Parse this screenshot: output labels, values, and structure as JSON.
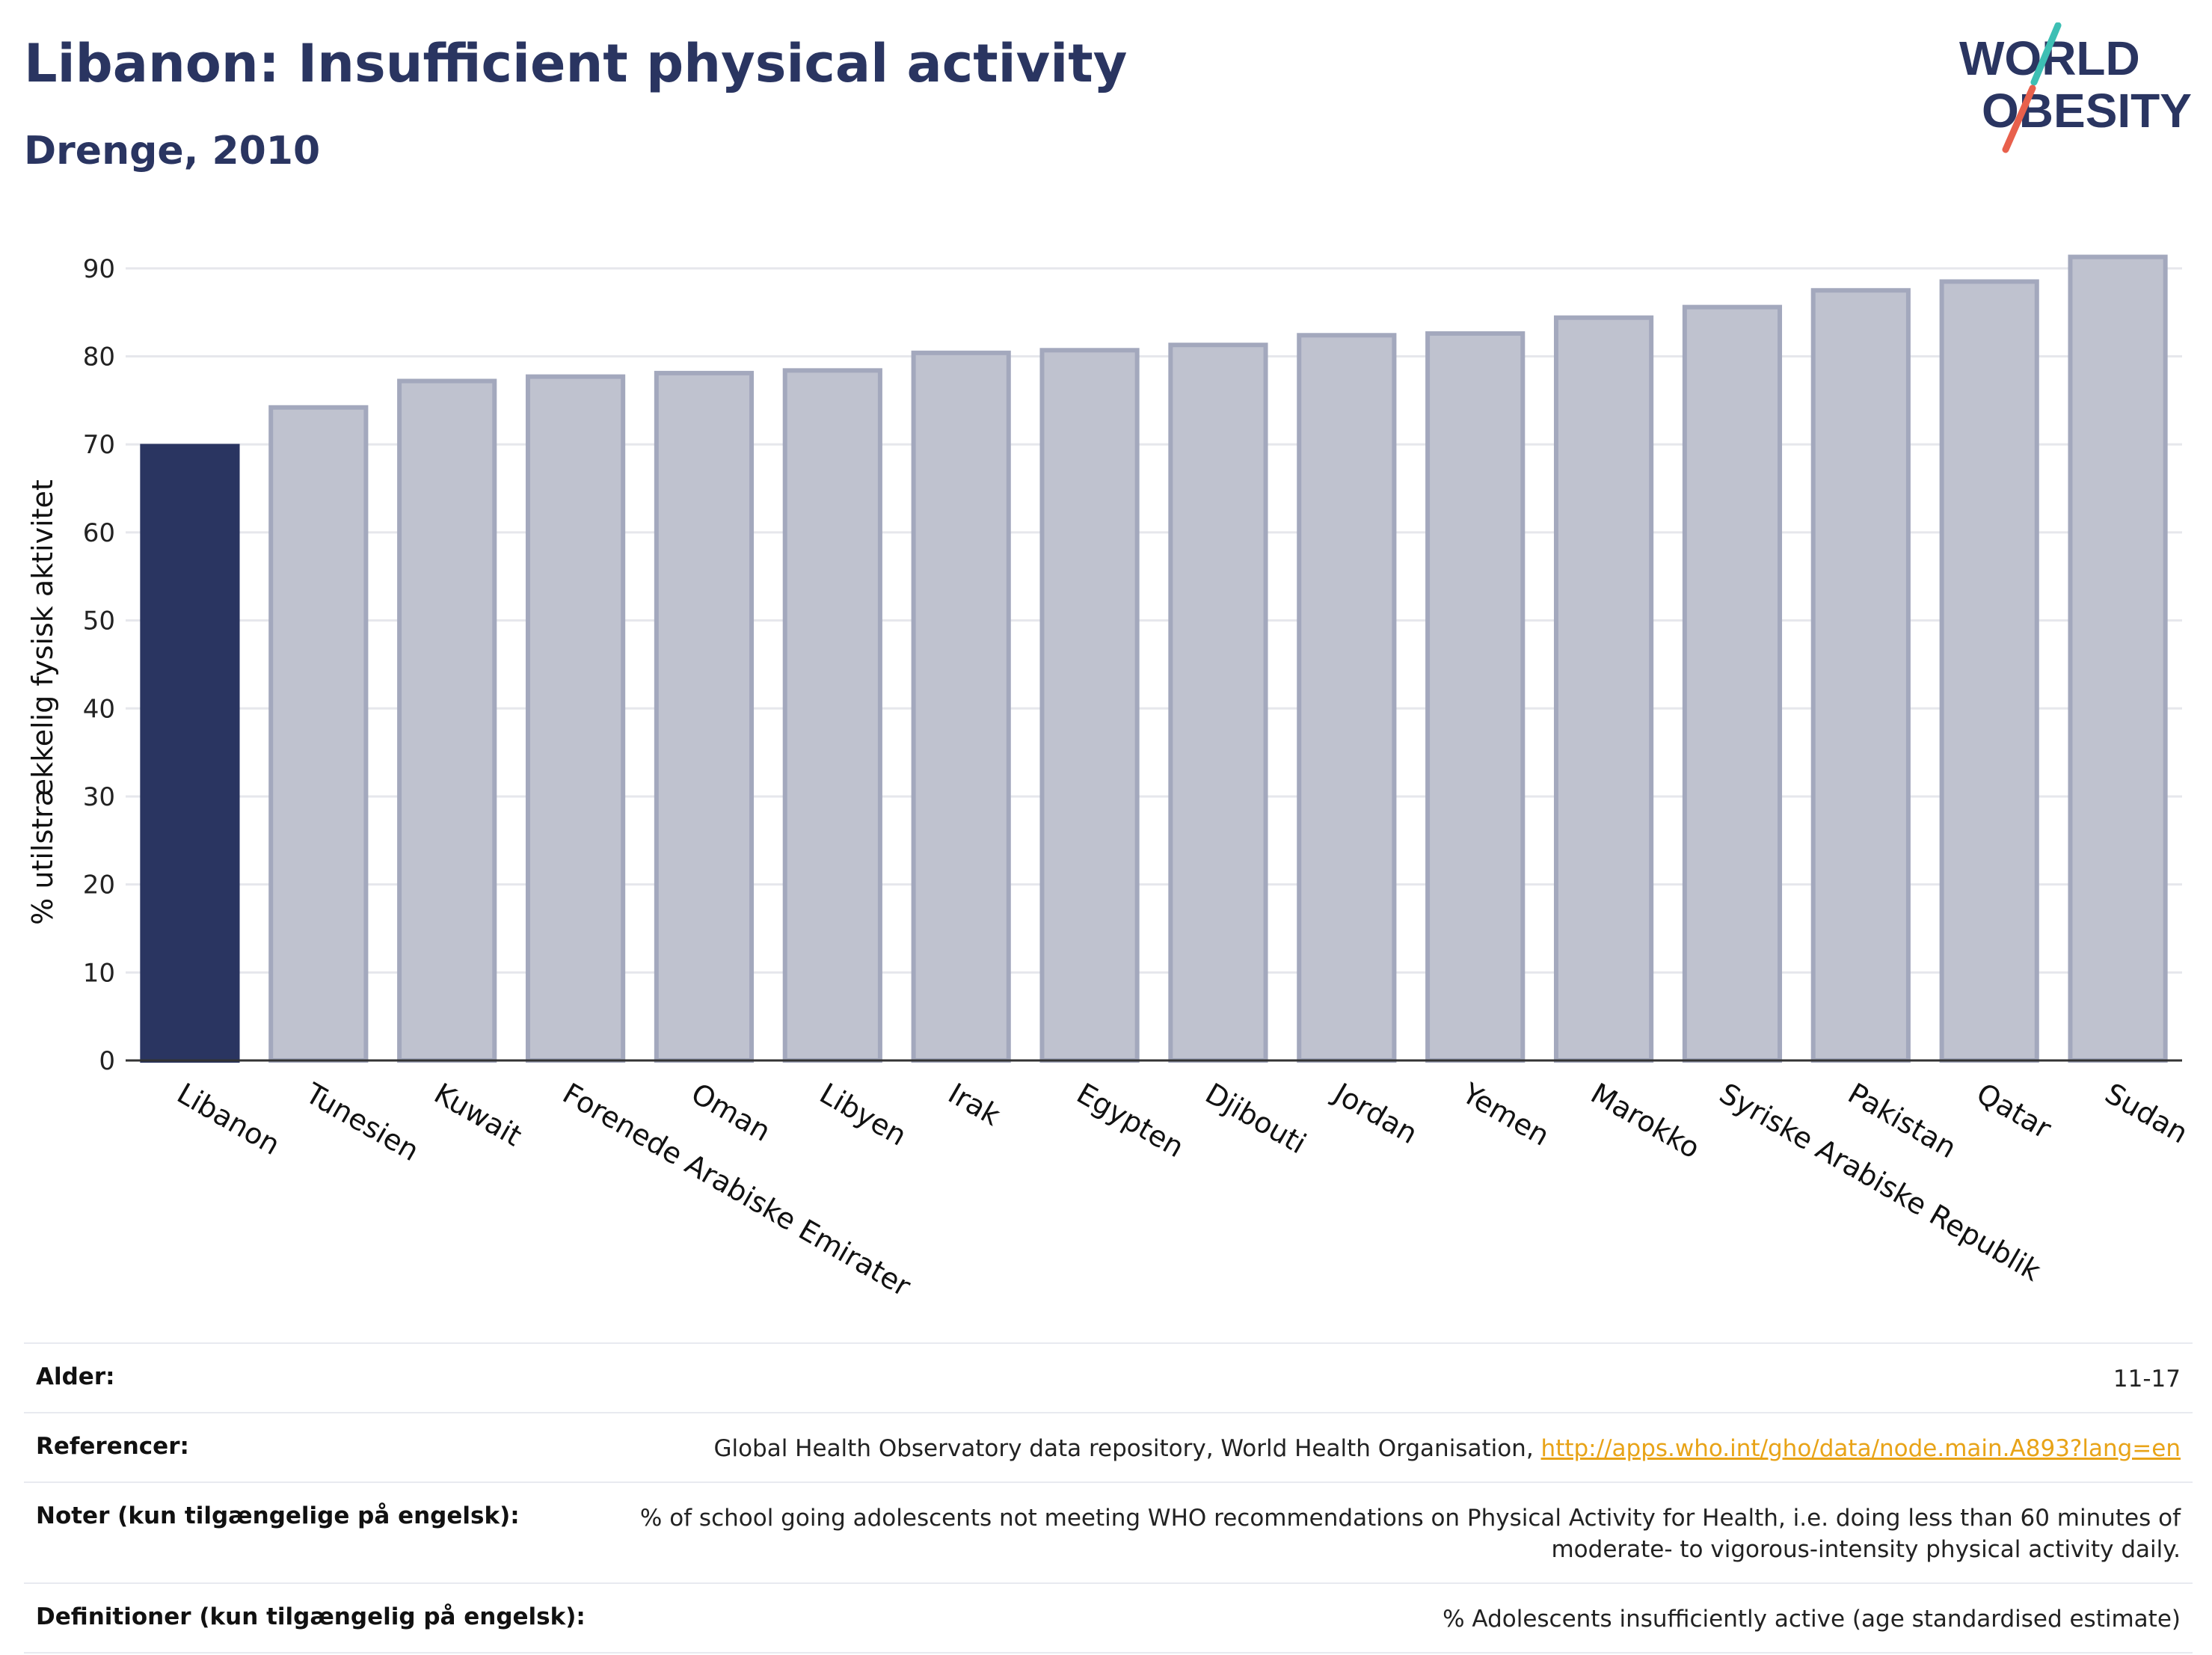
{
  "header": {
    "title": "Libanon: Insufficient physical activity",
    "subtitle": "Drenge, 2010"
  },
  "logo": {
    "line1": "WORLD",
    "line2": "OBESITY",
    "colors": {
      "text": "#2a3561",
      "teal": "#3dbfb4",
      "coral": "#e8604c"
    }
  },
  "colors": {
    "highlight": "#2a3561",
    "bar_fill": "#bfc2cf",
    "bar_stroke": "#a3a8bd",
    "grid": "#e6e7ec",
    "axis": "#333333"
  },
  "chart_data": {
    "type": "bar",
    "categories": [
      "Libanon",
      "Tunesien",
      "Kuwait",
      "Forenede Arabiske Emirater",
      "Oman",
      "Libyen",
      "Irak",
      "Egypten",
      "Djibouti",
      "Jordan",
      "Yemen",
      "Marokko",
      "Syriske Arabiske Republik",
      "Pakistan",
      "Qatar",
      "Sudan"
    ],
    "values": [
      69.8,
      74.2,
      77.2,
      77.7,
      78.1,
      78.4,
      80.4,
      80.7,
      81.3,
      82.4,
      82.6,
      84.4,
      85.6,
      87.5,
      88.5,
      91.3
    ],
    "highlight": "Libanon",
    "title": "",
    "xlabel": "",
    "ylabel": "% utilstrækkelig fysisk aktivitet",
    "ylim": [
      0,
      95
    ],
    "yticks": [
      0,
      10,
      20,
      30,
      40,
      50,
      60,
      70,
      80,
      90
    ],
    "grid": true
  },
  "meta": {
    "rows": [
      {
        "label": "Alder:",
        "value": "11-17"
      },
      {
        "label": "Referencer:",
        "value": "Global Health Observatory data repository, World Health Organisation, ",
        "link": "http://apps.who.int/gho/data/node.main.A893?lang=en"
      },
      {
        "label": "Noter (kun tilgængelige på engelsk):",
        "value": "% of school going adolescents not meeting WHO recommendations on Physical Activity for Health, i.e. doing less than 60 minutes of moderate- to vigorous-intensity physical activity daily."
      },
      {
        "label": "Definitioner (kun tilgængelig på engelsk):",
        "value": "% Adolescents insufficiently active (age standardised estimate)"
      }
    ]
  }
}
